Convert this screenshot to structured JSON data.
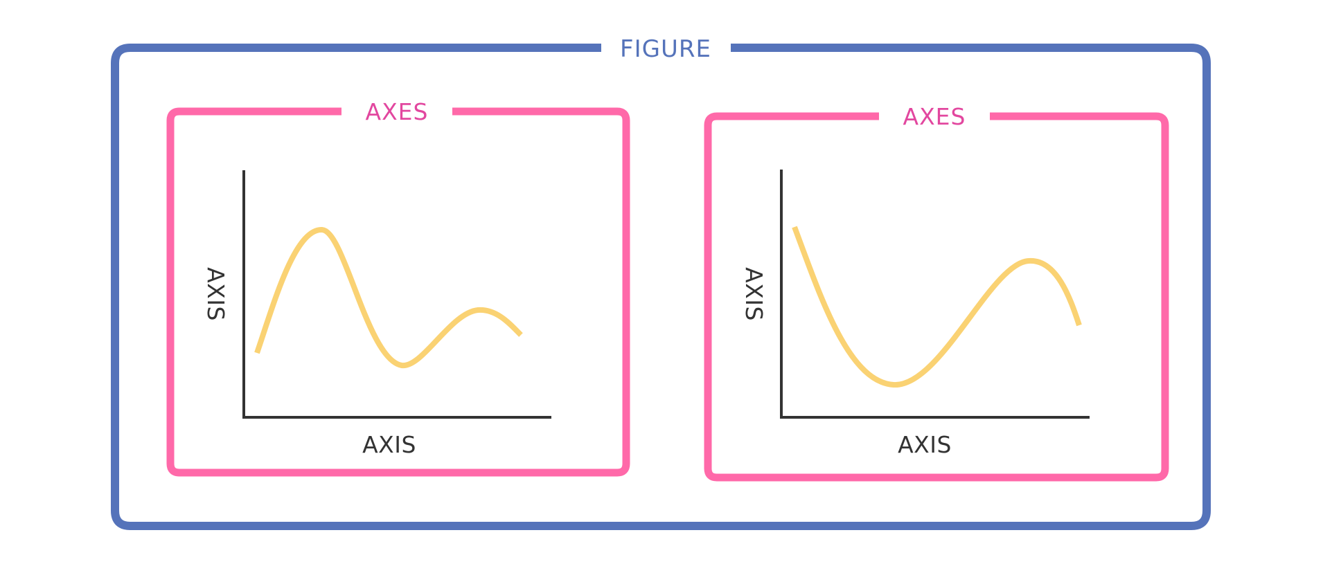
{
  "colors": {
    "figure": "#5573BA",
    "axes_frame": "#FF69A9",
    "axes_label": "#E2479F",
    "axis": "#333333",
    "curve": "#FAD273",
    "background": "#FFFFFF"
  },
  "figure": {
    "label": "FIGURE"
  },
  "panels": [
    {
      "axes_label": "AXES",
      "xaxis_label": "AXIS",
      "yaxis_label": "AXIS",
      "curve_shape": "rising peak, dip, smaller hump, falling"
    },
    {
      "axes_label": "AXES",
      "xaxis_label": "AXIS",
      "yaxis_label": "AXIS",
      "curve_shape": "falling into valley, rising hump, falling"
    }
  ]
}
